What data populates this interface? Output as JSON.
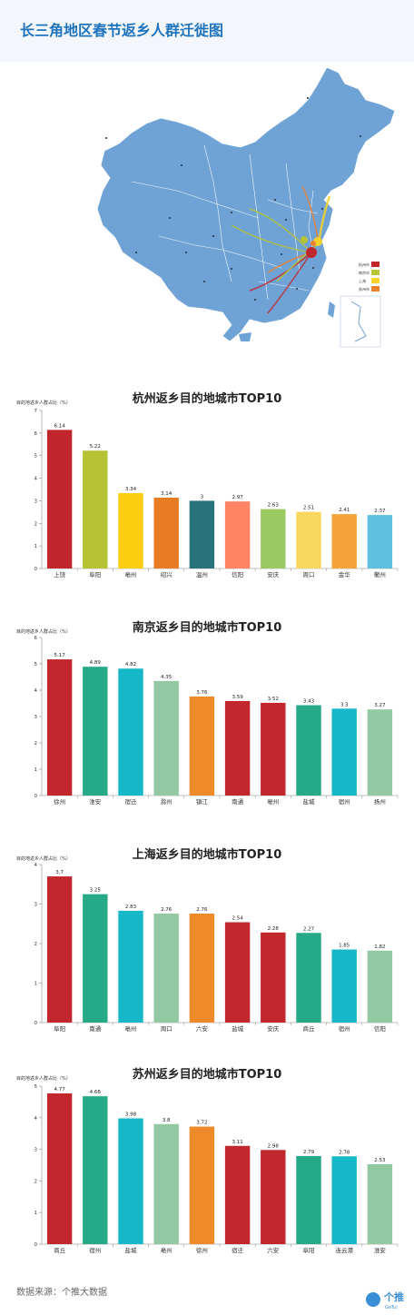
{
  "page": {
    "title": "长三角地区春节返乡人群迁徙图",
    "footer": "数据来源：个推大数据",
    "logo_text": "个推",
    "logo_subtext": "GeTui"
  },
  "map_legend": [
    {
      "label": "杭州市",
      "color": "#c0272d"
    },
    {
      "label": "南京市",
      "color": "#b5c334"
    },
    {
      "label": "上海",
      "color": "#f5d22c"
    },
    {
      "label": "苏州市",
      "color": "#ee7f2d"
    }
  ],
  "chart_data": [
    {
      "type": "bar",
      "title": "杭州返乡目的地城市TOP10",
      "ylabel": "目的地返乡人群占比（%）",
      "ylim": [
        0,
        7
      ],
      "yticks": [
        0,
        1,
        2,
        3,
        4,
        5,
        6,
        7
      ],
      "categories": [
        "上饶",
        "阜阳",
        "亳州",
        "绍兴",
        "温州",
        "信阳",
        "安庆",
        "周口",
        "金华",
        "衢州"
      ],
      "values": [
        6.14,
        5.22,
        3.34,
        3.14,
        3,
        2.97,
        2.63,
        2.51,
        2.41,
        2.37
      ],
      "colors": [
        "#c0272d",
        "#b5c334",
        "#fcce10",
        "#e87c25",
        "#27727b",
        "#fe8463",
        "#9bca63",
        "#fad860",
        "#f3a43b",
        "#60c0dd"
      ]
    },
    {
      "type": "bar",
      "title": "南京返乡目的地城市TOP10",
      "ylabel": "目的地返乡人群占比（%）",
      "ylim": [
        0,
        6
      ],
      "yticks": [
        0,
        1,
        2,
        3,
        4,
        5,
        6
      ],
      "categories": [
        "徐州",
        "淮安",
        "宿迁",
        "滁州",
        "镇江",
        "南通",
        "亳州",
        "盐城",
        "宿州",
        "扬州"
      ],
      "values": [
        5.17,
        4.89,
        4.82,
        4.35,
        3.76,
        3.59,
        3.52,
        3.43,
        3.3,
        3.27
      ],
      "colors": [
        "#c1272d",
        "#26a987",
        "#16b8c8",
        "#92c9a3",
        "#ef8a2a",
        "#c1272d",
        "#c1272d",
        "#26a987",
        "#16b8c8",
        "#92c9a3"
      ]
    },
    {
      "type": "bar",
      "title": "上海返乡目的地城市TOP10",
      "ylabel": "目的地返乡人群占比（%）",
      "ylim": [
        0,
        4
      ],
      "yticks": [
        0,
        1,
        2,
        3,
        4
      ],
      "categories": [
        "阜阳",
        "南通",
        "亳州",
        "周口",
        "六安",
        "盐城",
        "安庆",
        "商丘",
        "宿州",
        "信阳"
      ],
      "values": [
        3.7,
        3.25,
        2.83,
        2.76,
        2.76,
        2.54,
        2.28,
        2.27,
        1.85,
        1.82
      ],
      "colors": [
        "#c1272d",
        "#26a987",
        "#16b8c8",
        "#92c9a3",
        "#ef8a2a",
        "#c1272d",
        "#c1272d",
        "#26a987",
        "#16b8c8",
        "#92c9a3"
      ]
    },
    {
      "type": "bar",
      "title": "苏州返乡目的地城市TOP10",
      "ylabel": "目的地返乡人群占比（%）",
      "ylim": [
        0,
        5
      ],
      "yticks": [
        0,
        1,
        2,
        3,
        4,
        5
      ],
      "categories": [
        "商丘",
        "宿州",
        "盐城",
        "亳州",
        "徐州",
        "宿迁",
        "六安",
        "阜阳",
        "连云港",
        "淮安"
      ],
      "values": [
        4.77,
        4.68,
        3.98,
        3.8,
        3.72,
        3.11,
        2.98,
        2.79,
        2.78,
        2.53
      ],
      "colors": [
        "#c1272d",
        "#26a987",
        "#16b8c8",
        "#92c9a3",
        "#ef8a2a",
        "#c1272d",
        "#c1272d",
        "#26a987",
        "#16b8c8",
        "#92c9a3"
      ]
    }
  ]
}
